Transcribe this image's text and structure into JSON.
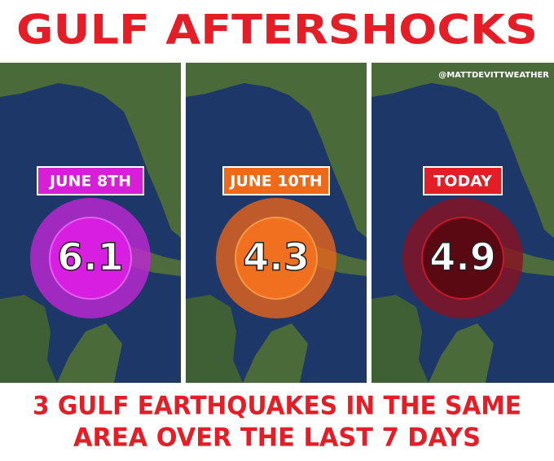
{
  "header": {
    "title": "GULF AFTERSHOCKS",
    "handle": "@MATTDEVITTWEATHER"
  },
  "panels": [
    {
      "date": "JUNE 8TH",
      "magnitude": 6.1
    },
    {
      "date": "JUNE 10TH",
      "magnitude": 4.3
    },
    {
      "date": "TODAY",
      "magnitude": 4.9
    }
  ],
  "footer": {
    "lines": [
      "3 GULF EARTHQUAKES IN THE SAME",
      "AREA OVER THE LAST 7 DAYS"
    ]
  }
}
